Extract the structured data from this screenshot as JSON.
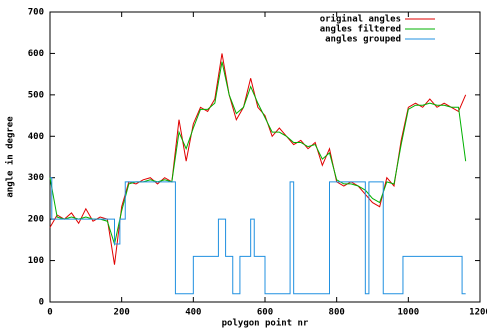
{
  "chart_data": {
    "type": "line",
    "x_label": "polygon point nr",
    "y_label": "angle in degree",
    "xlim": [
      0,
      1200
    ],
    "xticks": [
      0,
      200,
      400,
      600,
      800,
      1000,
      1200
    ],
    "ylim": [
      0,
      700
    ],
    "yticks": [
      0,
      100,
      200,
      300,
      400,
      500,
      600,
      700
    ],
    "legend": "top-right",
    "series": [
      {
        "name": "original angles",
        "color": "#e00000",
        "x": [
          0,
          20,
          40,
          60,
          80,
          100,
          120,
          140,
          160,
          180,
          200,
          220,
          240,
          260,
          280,
          300,
          320,
          340,
          360,
          380,
          400,
          420,
          440,
          460,
          480,
          500,
          520,
          540,
          560,
          580,
          600,
          620,
          640,
          660,
          680,
          700,
          720,
          740,
          760,
          780,
          800,
          820,
          840,
          860,
          880,
          900,
          920,
          940,
          960,
          980,
          1000,
          1020,
          1040,
          1060,
          1080,
          1100,
          1120,
          1140,
          1160
        ],
        "values": [
          180,
          210,
          200,
          215,
          190,
          225,
          195,
          205,
          200,
          90,
          230,
          290,
          285,
          295,
          300,
          285,
          300,
          290,
          440,
          340,
          430,
          470,
          460,
          490,
          600,
          500,
          440,
          470,
          540,
          470,
          450,
          400,
          420,
          400,
          380,
          390,
          370,
          385,
          330,
          370,
          290,
          280,
          290,
          280,
          260,
          240,
          230,
          300,
          280,
          390,
          470,
          480,
          470,
          490,
          470,
          480,
          470,
          460,
          500
        ]
      },
      {
        "name": "angles filtered",
        "color": "#00b000",
        "x": [
          0,
          20,
          40,
          60,
          80,
          100,
          120,
          140,
          160,
          180,
          200,
          220,
          240,
          260,
          280,
          300,
          320,
          340,
          360,
          380,
          400,
          420,
          440,
          460,
          480,
          500,
          520,
          540,
          560,
          580,
          600,
          620,
          640,
          660,
          680,
          700,
          720,
          740,
          760,
          780,
          800,
          820,
          840,
          860,
          880,
          900,
          920,
          940,
          960,
          980,
          1000,
          1020,
          1040,
          1060,
          1080,
          1100,
          1120,
          1140,
          1160
        ],
        "values": [
          300,
          205,
          200,
          205,
          200,
          205,
          200,
          200,
          195,
          140,
          220,
          285,
          290,
          290,
          295,
          290,
          295,
          290,
          410,
          370,
          420,
          465,
          465,
          480,
          580,
          500,
          455,
          470,
          520,
          480,
          445,
          410,
          410,
          400,
          385,
          385,
          375,
          380,
          345,
          360,
          295,
          285,
          285,
          280,
          270,
          250,
          240,
          290,
          285,
          380,
          465,
          475,
          475,
          480,
          475,
          475,
          470,
          470,
          340
        ]
      },
      {
        "name": "angles grouped",
        "color": "#2090e0",
        "x": [
          0,
          5,
          5,
          180,
          180,
          195,
          195,
          210,
          210,
          350,
          350,
          400,
          400,
          470,
          470,
          490,
          490,
          510,
          510,
          530,
          530,
          560,
          560,
          570,
          570,
          600,
          600,
          670,
          670,
          680,
          680,
          780,
          780,
          880,
          880,
          890,
          890,
          930,
          930,
          950,
          950,
          985,
          985,
          1150,
          1150,
          1160
        ],
        "values": [
          300,
          300,
          200,
          200,
          140,
          140,
          200,
          200,
          290,
          290,
          20,
          20,
          110,
          110,
          200,
          200,
          110,
          110,
          20,
          20,
          110,
          110,
          200,
          200,
          110,
          110,
          20,
          20,
          290,
          290,
          20,
          20,
          290,
          290,
          20,
          20,
          290,
          290,
          20,
          20,
          20,
          20,
          110,
          110,
          20,
          20
        ]
      }
    ]
  }
}
